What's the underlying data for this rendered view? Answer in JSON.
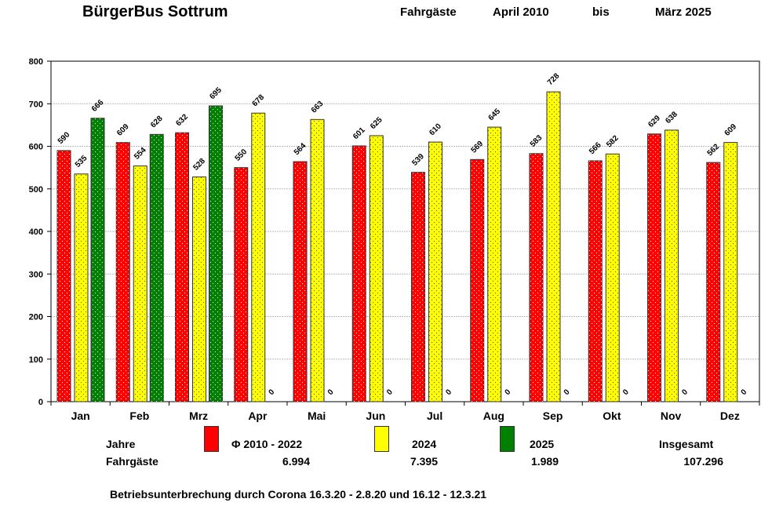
{
  "header": {
    "title": "BürgerBus Sottrum",
    "label": "Fahrgäste",
    "from": "April 2010",
    "bis": "bis",
    "to": "März 2025"
  },
  "chart_data": {
    "type": "bar",
    "categories": [
      "Jan",
      "Feb",
      "Mrz",
      "Apr",
      "Mai",
      "Jun",
      "Jul",
      "Aug",
      "Sep",
      "Okt",
      "Nov",
      "Dez"
    ],
    "ylim": [
      0,
      800
    ],
    "yticks": [
      0,
      100,
      200,
      300,
      400,
      500,
      600,
      700,
      800
    ],
    "grid": true,
    "series": [
      {
        "name": "Φ 2010 - 2022",
        "color": "#ff0000",
        "values": [
          590,
          609,
          632,
          550,
          564,
          601,
          539,
          569,
          583,
          566,
          629,
          562
        ]
      },
      {
        "name": "2024",
        "color": "#ffff00",
        "values": [
          535,
          554,
          528,
          678,
          663,
          625,
          610,
          645,
          728,
          582,
          638,
          609
        ]
      },
      {
        "name": "2025",
        "color": "#008000",
        "values": [
          666,
          628,
          695,
          0,
          0,
          0,
          0,
          0,
          0,
          0,
          0,
          0
        ]
      }
    ]
  },
  "legend": {
    "row1_label": "Jahre",
    "row2_label": "Fahrgäste",
    "totals_label": "Insgesamt",
    "totals": [
      "6.994",
      "7.395",
      "1.989",
      "107.296"
    ]
  },
  "footer": "Betriebsunterbrechung durch Corona  16.3.20 - 2.8.20 und 16.12 - 12.3.21"
}
